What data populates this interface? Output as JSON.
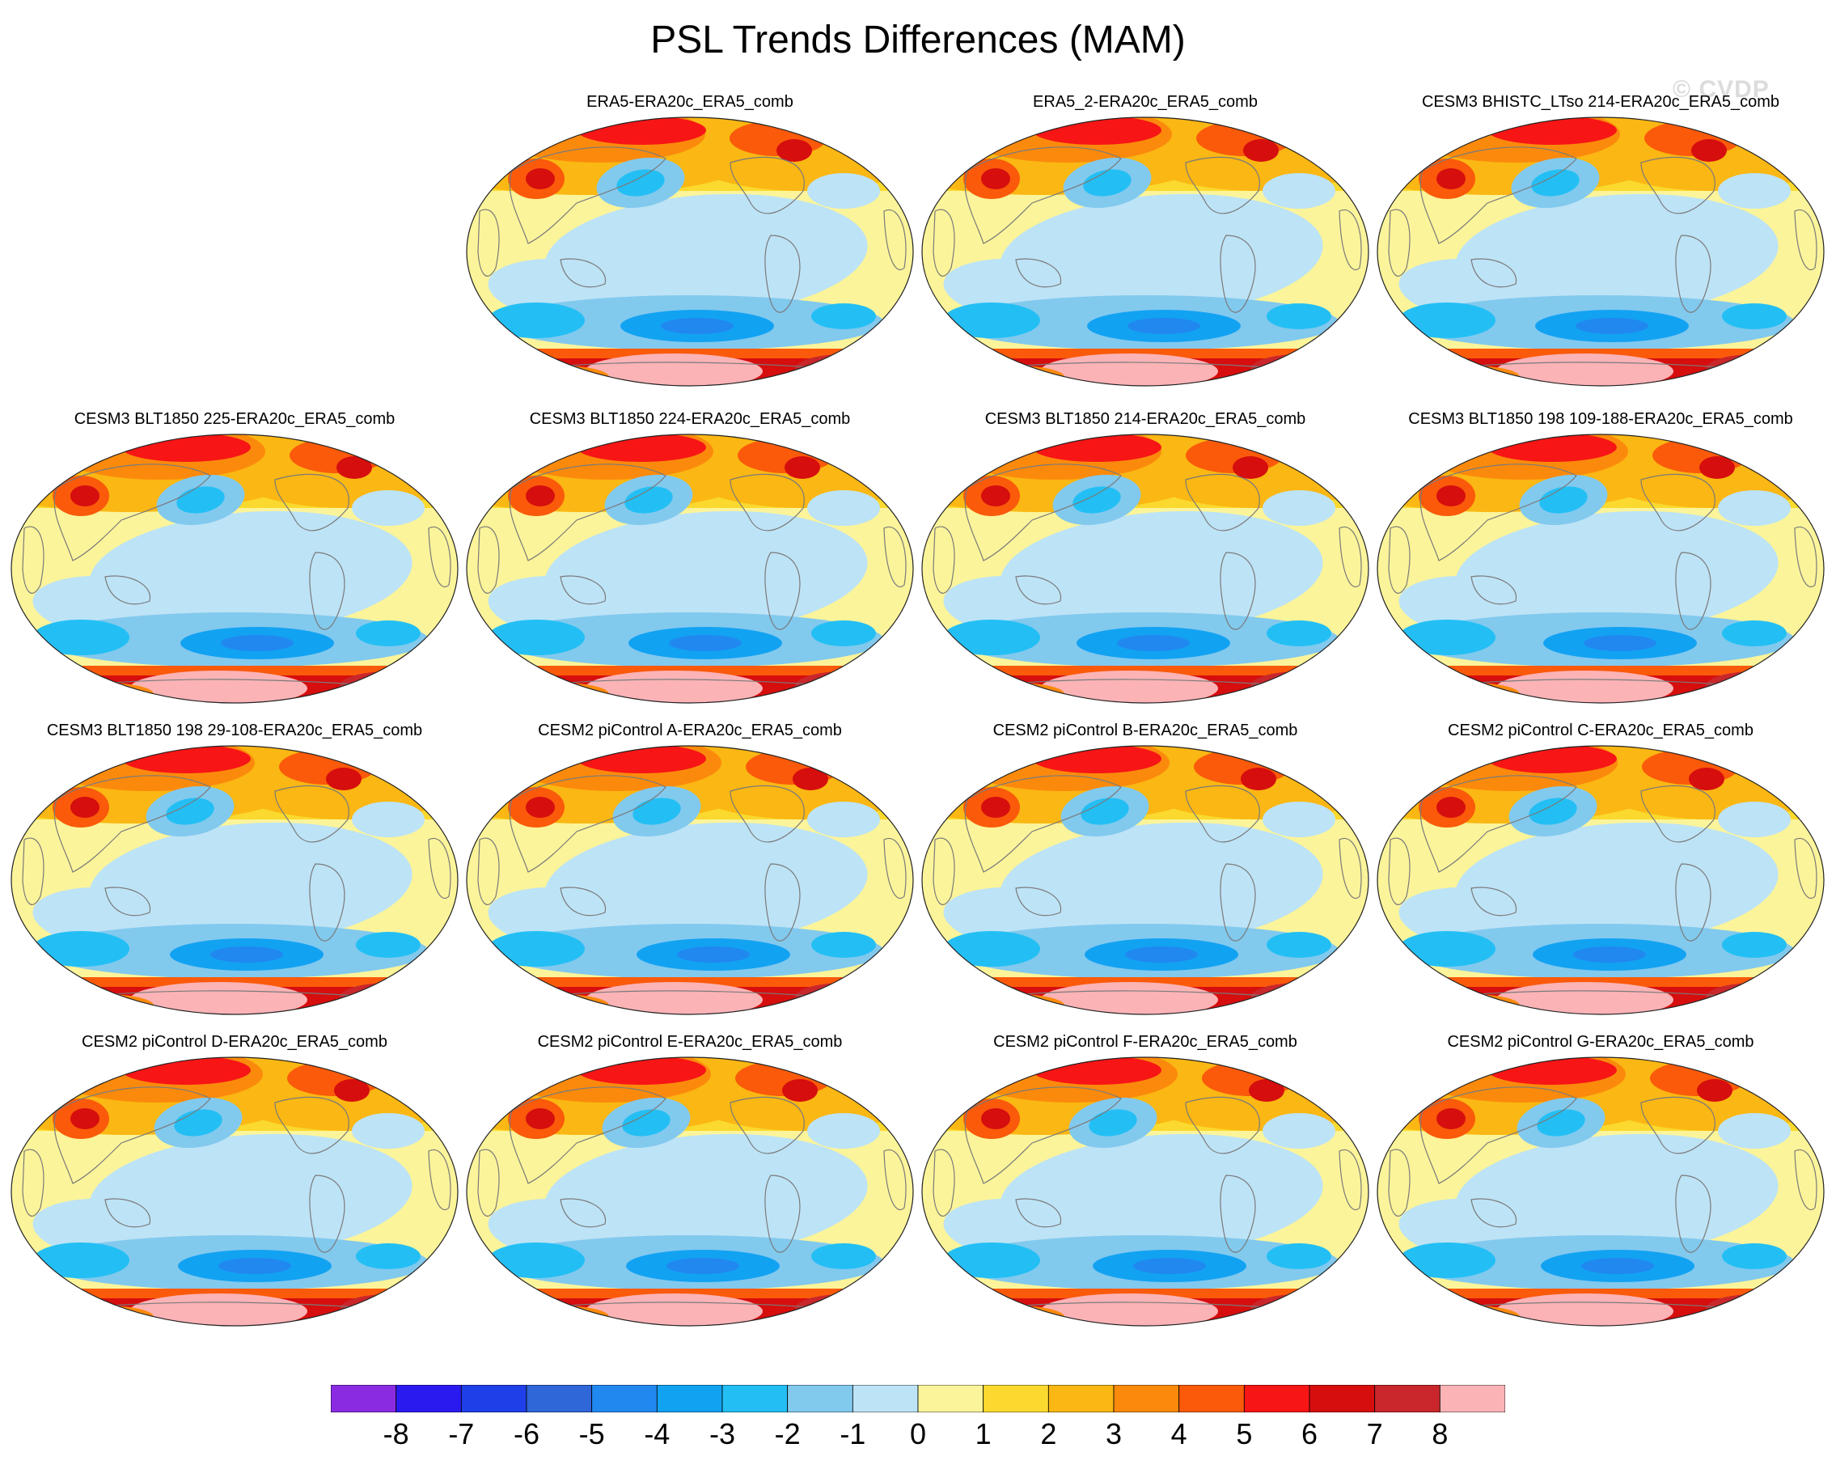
{
  "title": "PSL Trends Differences (MAM)",
  "watermark": "© CVDP",
  "projection": "Robinson, Pacific-centered",
  "panels": [
    {
      "label": "ERA5-ERA20c_ERA5_comb",
      "row": 0,
      "col": 1
    },
    {
      "label": "ERA5_2-ERA20c_ERA5_comb",
      "row": 0,
      "col": 2
    },
    {
      "label": "CESM3 BHISTC_LTso 214-ERA20c_ERA5_comb",
      "row": 0,
      "col": 3
    },
    {
      "label": "CESM3 BLT1850 225-ERA20c_ERA5_comb",
      "row": 1,
      "col": 0
    },
    {
      "label": "CESM3 BLT1850 224-ERA20c_ERA5_comb",
      "row": 1,
      "col": 1
    },
    {
      "label": "CESM3 BLT1850 214-ERA20c_ERA5_comb",
      "row": 1,
      "col": 2
    },
    {
      "label": "CESM3 BLT1850 198 109-188-ERA20c_ERA5_comb",
      "row": 1,
      "col": 3
    },
    {
      "label": "CESM3 BLT1850 198 29-108-ERA20c_ERA5_comb",
      "row": 2,
      "col": 0
    },
    {
      "label": "CESM2 piControl A-ERA20c_ERA5_comb",
      "row": 2,
      "col": 1
    },
    {
      "label": "CESM2 piControl B-ERA20c_ERA5_comb",
      "row": 2,
      "col": 2
    },
    {
      "label": "CESM2 piControl C-ERA20c_ERA5_comb",
      "row": 2,
      "col": 3
    },
    {
      "label": "CESM2 piControl D-ERA20c_ERA5_comb",
      "row": 3,
      "col": 0
    },
    {
      "label": "CESM2 piControl E-ERA20c_ERA5_comb",
      "row": 3,
      "col": 1
    },
    {
      "label": "CESM2 piControl F-ERA20c_ERA5_comb",
      "row": 3,
      "col": 2
    },
    {
      "label": "CESM2 piControl G-ERA20c_ERA5_comb",
      "row": 3,
      "col": 3
    }
  ],
  "colorbar": {
    "labels": [
      "-8",
      "-7",
      "-6",
      "-5",
      "-4",
      "-3",
      "-2",
      "-1",
      "0",
      "1",
      "2",
      "3",
      "4",
      "5",
      "6",
      "7",
      "8"
    ],
    "colors": [
      "#8a2be2",
      "#2a1af0",
      "#1f3fe8",
      "#2f66d8",
      "#2188f0",
      "#12a2f2",
      "#23bff4",
      "#82c9ee",
      "#bde3f6",
      "#fbf49a",
      "#fbd92e",
      "#fbb713",
      "#fb8a0c",
      "#fa5a0a",
      "#f71515",
      "#d60e0e",
      "#c9272b",
      "#fbb3b6"
    ]
  }
}
